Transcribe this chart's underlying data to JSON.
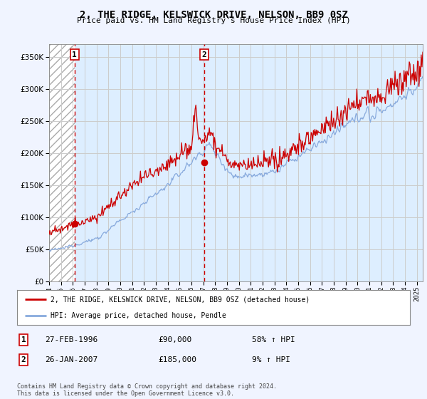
{
  "title": "2, THE RIDGE, KELSWICK DRIVE, NELSON, BB9 0SZ",
  "subtitle": "Price paid vs. HM Land Registry's House Price Index (HPI)",
  "ylim": [
    0,
    370000
  ],
  "sale1_date_num": 1996.15,
  "sale1_price": 90000,
  "sale1_label": "1",
  "sale1_date_str": "27-FEB-1996",
  "sale1_price_str": "£90,000",
  "sale1_hpi_str": "58% ↑ HPI",
  "sale2_date_num": 2007.07,
  "sale2_price": 185000,
  "sale2_label": "2",
  "sale2_date_str": "26-JAN-2007",
  "sale2_price_str": "£185,000",
  "sale2_hpi_str": "9% ↑ HPI",
  "line1_color": "#cc0000",
  "line2_color": "#88aadd",
  "marker_color": "#cc0000",
  "dashed_line_color": "#cc0000",
  "grid_color": "#cccccc",
  "bg_color": "#f0f4ff",
  "plot_bg_color": "#ddeeff",
  "hatch_bg_color": "#ffffff",
  "legend_label1": "2, THE RIDGE, KELSWICK DRIVE, NELSON, BB9 0SZ (detached house)",
  "legend_label2": "HPI: Average price, detached house, Pendle",
  "footer": "Contains HM Land Registry data © Crown copyright and database right 2024.\nThis data is licensed under the Open Government Licence v3.0.",
  "xmin": 1994,
  "xmax": 2025.5
}
